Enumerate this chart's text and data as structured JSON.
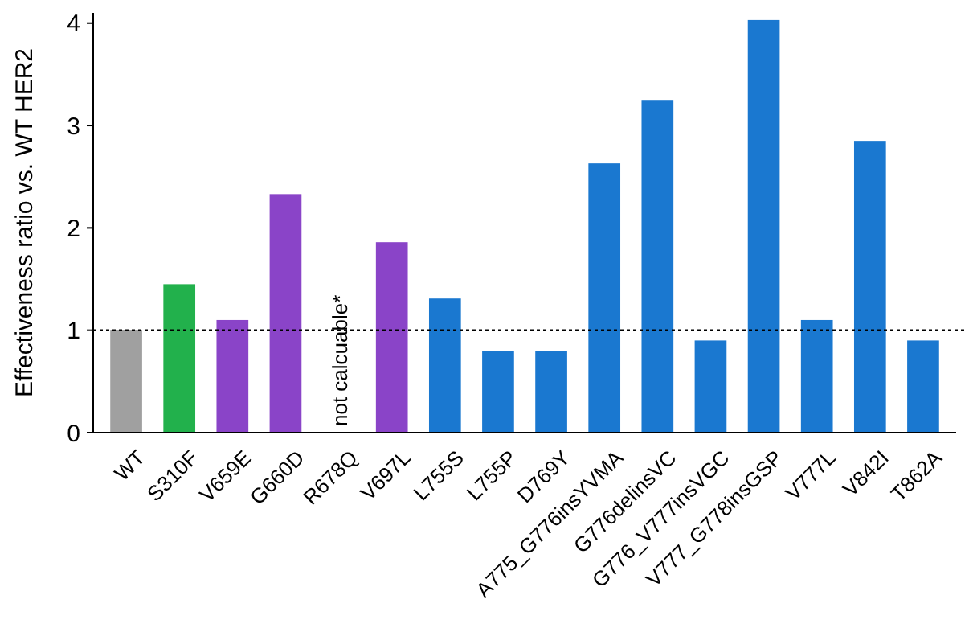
{
  "chart_data": {
    "type": "bar",
    "ylabel": "Effectiveness ratio vs. WT HER2",
    "categories": [
      "WT",
      "S310F",
      "V659E",
      "G660D",
      "R678Q",
      "V697L",
      "L755S",
      "L755P",
      "D769Y",
      "A775_G776insYVMA",
      "G776delinsVC",
      "G776_V777insVGC",
      "V777_G778insGSP",
      "V777L",
      "V842I",
      "T862A"
    ],
    "values": [
      1,
      1.45,
      1.1,
      2.33,
      null,
      1.86,
      1.31,
      0.8,
      0.8,
      2.63,
      3.25,
      0.9,
      4.03,
      1.1,
      2.85,
      0.9
    ],
    "colors": [
      "#a0a0a0",
      "#22b14c",
      "#8a44c8",
      "#8a44c8",
      null,
      "#8a44c8",
      "#1a78d0",
      "#1a78d0",
      "#1a78d0",
      "#1a78d0",
      "#1a78d0",
      "#1a78d0",
      "#1a78d0",
      "#1a78d0",
      "#1a78d0",
      "#1a78d0"
    ],
    "ylim": [
      0,
      4.1
    ],
    "yticks": [
      0,
      1,
      2,
      3,
      4
    ],
    "grid": false,
    "ref_lines": [
      {
        "axis": "y",
        "value": 1,
        "line_style": "dotted",
        "color": "#000000"
      }
    ],
    "annotations": [
      "not calcuable*"
    ]
  }
}
